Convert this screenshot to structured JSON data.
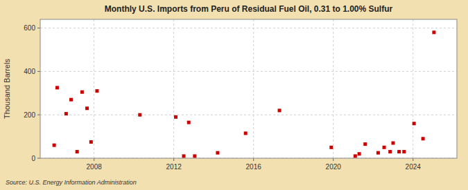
{
  "chart_data": {
    "type": "scatter",
    "title": "Monthly U.S. Imports from Peru of Residual Fuel Oil, 0.31 to 1.00% Sulfur",
    "ylabel": "Thousand Barrels",
    "source": "Source: U.S. Energy Information Administration",
    "color": "#cc0000",
    "marker": "square",
    "grid": true,
    "xlim": [
      2005.3,
      2026.2
    ],
    "xticks": [
      2008,
      2012,
      2016,
      2020,
      2024
    ],
    "ylim": [
      0,
      640
    ],
    "yticks": [
      0,
      200,
      400,
      600
    ],
    "x": [
      2006.0,
      2006.15,
      2006.6,
      2006.85,
      2007.15,
      2007.4,
      2007.65,
      2007.85,
      2008.15,
      2010.3,
      2012.1,
      2012.5,
      2012.75,
      2013.05,
      2014.2,
      2015.6,
      2017.3,
      2019.9,
      2021.1,
      2021.3,
      2021.6,
      2022.25,
      2022.55,
      2022.85,
      2023.0,
      2023.3,
      2023.55,
      2024.05,
      2024.5,
      2025.05
    ],
    "values": [
      60,
      325,
      205,
      270,
      30,
      305,
      230,
      75,
      310,
      200,
      190,
      10,
      165,
      10,
      25,
      115,
      220,
      50,
      10,
      20,
      65,
      25,
      50,
      30,
      70,
      30,
      30,
      160,
      90,
      580
    ]
  }
}
